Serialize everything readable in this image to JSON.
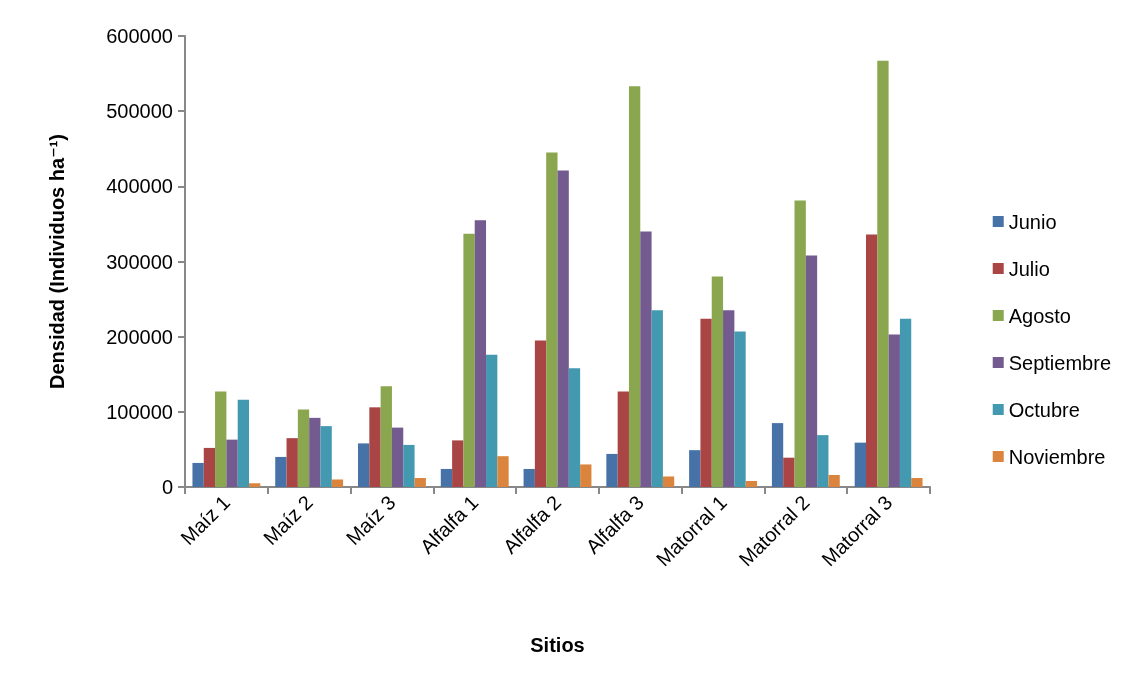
{
  "chart_data": {
    "type": "bar",
    "xlabel": "Sitios",
    "ylabel": "Densidad (Individuos ha⁻¹)",
    "categories": [
      "Maíz 1",
      "Maíz 2",
      "Maíz 3",
      "Alfalfa 1",
      "Alfalfa 2",
      "Alfalfa 3",
      "Matorral 1",
      "Matorral 2",
      "Matorral 3"
    ],
    "series": [
      {
        "name": "Junio",
        "color": "#4672a8",
        "values": [
          32000,
          40000,
          58000,
          24000,
          24000,
          44000,
          49000,
          85000,
          59000
        ]
      },
      {
        "name": "Julio",
        "color": "#a94545",
        "values": [
          52000,
          65000,
          106000,
          62000,
          195000,
          127000,
          224000,
          39000,
          336000
        ]
      },
      {
        "name": "Agosto",
        "color": "#8aa64e",
        "values": [
          127000,
          103000,
          134000,
          337000,
          445000,
          533000,
          280000,
          381000,
          567000
        ]
      },
      {
        "name": "Septiembre",
        "color": "#735a8f",
        "values": [
          63000,
          92000,
          79000,
          355000,
          421000,
          340000,
          235000,
          308000,
          203000
        ]
      },
      {
        "name": "Octubre",
        "color": "#4399b0",
        "values": [
          116000,
          81000,
          56000,
          176000,
          158000,
          235000,
          207000,
          69000,
          224000
        ]
      },
      {
        "name": "Noviembre",
        "color": "#db843d",
        "values": [
          5000,
          10000,
          12000,
          41000,
          30000,
          14000,
          8000,
          16000,
          12000
        ]
      }
    ],
    "ylim": [
      0,
      600000
    ],
    "yticks": [
      0,
      100000,
      200000,
      300000,
      400000,
      500000,
      600000
    ],
    "grid": false,
    "legend": "right"
  }
}
